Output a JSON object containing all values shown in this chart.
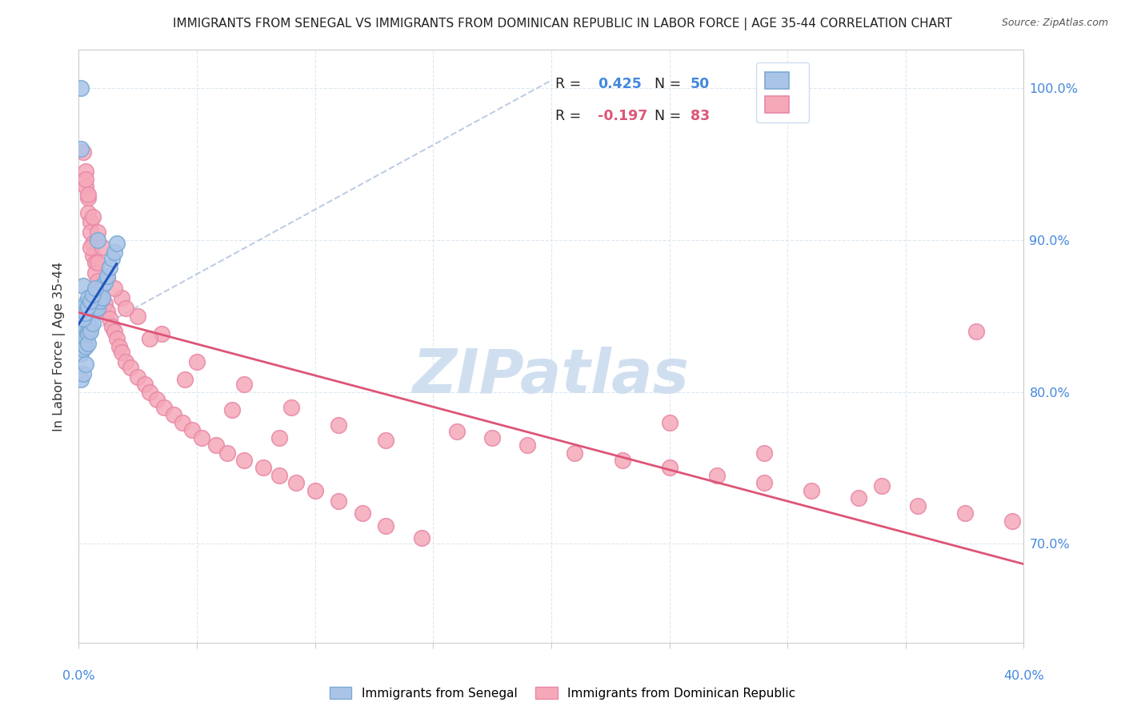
{
  "title": "IMMIGRANTS FROM SENEGAL VS IMMIGRANTS FROM DOMINICAN REPUBLIC IN LABOR FORCE | AGE 35-44 CORRELATION CHART",
  "source": "Source: ZipAtlas.com",
  "ylabel": "In Labor Force | Age 35-44",
  "legend_label_blue": "Immigrants from Senegal",
  "legend_label_pink": "Immigrants from Dominican Republic",
  "R_blue": 0.425,
  "N_blue": 50,
  "R_pink": -0.197,
  "N_pink": 83,
  "color_blue_fill": "#aac4e8",
  "color_blue_edge": "#7aaad4",
  "color_pink_fill": "#f5a8b8",
  "color_pink_edge": "#e888a8",
  "color_blue_line": "#2255bb",
  "color_pink_line": "#dd5577",
  "color_dashed_line": "#b8c8e0",
  "color_axis_text": "#4488dd",
  "color_grid": "#dde8f0",
  "color_title": "#222222",
  "color_watermark": "#d0dff0",
  "xlim": [
    0.0,
    0.4
  ],
  "ylim": [
    0.635,
    1.025
  ],
  "ytick_vals": [
    0.7,
    0.8,
    0.9,
    1.0
  ],
  "xtick_vals": [
    0.0,
    0.05,
    0.1,
    0.15,
    0.2,
    0.25,
    0.3,
    0.35,
    0.4
  ],
  "senegal_x": [
    0.001,
    0.001,
    0.001,
    0.002,
    0.002,
    0.002,
    0.003,
    0.003,
    0.004,
    0.004,
    0.004,
    0.005,
    0.005,
    0.005,
    0.006,
    0.006,
    0.007,
    0.007,
    0.008,
    0.008,
    0.009,
    0.009,
    0.01,
    0.01,
    0.011,
    0.012,
    0.013,
    0.014,
    0.015,
    0.016,
    0.001,
    0.001,
    0.002,
    0.002,
    0.003,
    0.003,
    0.004,
    0.004,
    0.005,
    0.006,
    0.001,
    0.002,
    0.003,
    0.008,
    0.002,
    0.003,
    0.004,
    0.005,
    0.006,
    0.007
  ],
  "senegal_y": [
    1.0,
    0.96,
    0.85,
    0.87,
    0.855,
    0.84,
    0.858,
    0.842,
    0.862,
    0.853,
    0.84,
    0.858,
    0.85,
    0.843,
    0.858,
    0.853,
    0.863,
    0.856,
    0.862,
    0.855,
    0.865,
    0.86,
    0.87,
    0.862,
    0.872,
    0.876,
    0.882,
    0.888,
    0.892,
    0.898,
    0.83,
    0.825,
    0.832,
    0.828,
    0.835,
    0.83,
    0.838,
    0.832,
    0.84,
    0.845,
    0.808,
    0.812,
    0.818,
    0.9,
    0.848,
    0.852,
    0.856,
    0.86,
    0.864,
    0.868
  ],
  "dominican_x": [
    0.002,
    0.003,
    0.003,
    0.004,
    0.004,
    0.005,
    0.005,
    0.006,
    0.006,
    0.007,
    0.007,
    0.008,
    0.009,
    0.01,
    0.011,
    0.012,
    0.013,
    0.014,
    0.015,
    0.016,
    0.017,
    0.018,
    0.02,
    0.022,
    0.025,
    0.028,
    0.03,
    0.033,
    0.036,
    0.04,
    0.044,
    0.048,
    0.052,
    0.058,
    0.063,
    0.07,
    0.078,
    0.085,
    0.092,
    0.1,
    0.11,
    0.12,
    0.13,
    0.145,
    0.16,
    0.175,
    0.19,
    0.21,
    0.23,
    0.25,
    0.27,
    0.29,
    0.31,
    0.33,
    0.355,
    0.375,
    0.395,
    0.005,
    0.008,
    0.012,
    0.018,
    0.025,
    0.035,
    0.05,
    0.07,
    0.09,
    0.11,
    0.13,
    0.003,
    0.004,
    0.006,
    0.008,
    0.01,
    0.015,
    0.02,
    0.03,
    0.045,
    0.065,
    0.085,
    0.38,
    0.34,
    0.29,
    0.25
  ],
  "dominican_y": [
    0.958,
    0.945,
    0.935,
    0.928,
    0.918,
    0.912,
    0.905,
    0.898,
    0.89,
    0.885,
    0.878,
    0.873,
    0.868,
    0.862,
    0.858,
    0.853,
    0.848,
    0.843,
    0.84,
    0.835,
    0.83,
    0.826,
    0.82,
    0.816,
    0.81,
    0.805,
    0.8,
    0.795,
    0.79,
    0.785,
    0.78,
    0.775,
    0.77,
    0.765,
    0.76,
    0.755,
    0.75,
    0.745,
    0.74,
    0.735,
    0.728,
    0.72,
    0.712,
    0.704,
    0.774,
    0.77,
    0.765,
    0.76,
    0.755,
    0.75,
    0.745,
    0.74,
    0.735,
    0.73,
    0.725,
    0.72,
    0.715,
    0.895,
    0.885,
    0.875,
    0.862,
    0.85,
    0.838,
    0.82,
    0.805,
    0.79,
    0.778,
    0.768,
    0.94,
    0.93,
    0.915,
    0.905,
    0.895,
    0.868,
    0.855,
    0.835,
    0.808,
    0.788,
    0.77,
    0.84,
    0.738,
    0.76,
    0.78
  ]
}
